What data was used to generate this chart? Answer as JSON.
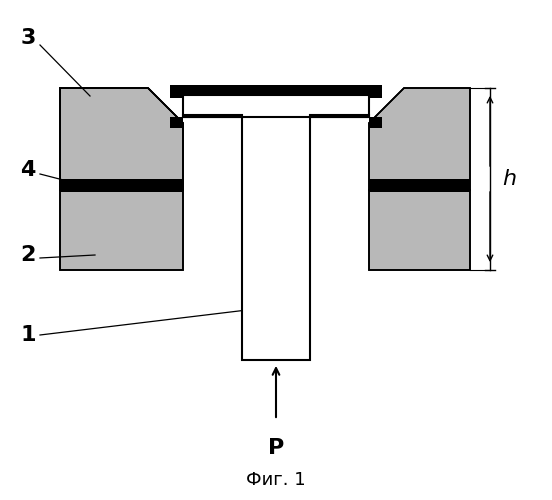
{
  "background": "#ffffff",
  "title": "Фиг. 1",
  "label_1": "1",
  "label_2": "2",
  "label_3": "3",
  "label_4": "4",
  "label_h": "h",
  "label_P": "P",
  "dot_color": "#b8b8b8",
  "black": "#000000",
  "white": "#ffffff"
}
